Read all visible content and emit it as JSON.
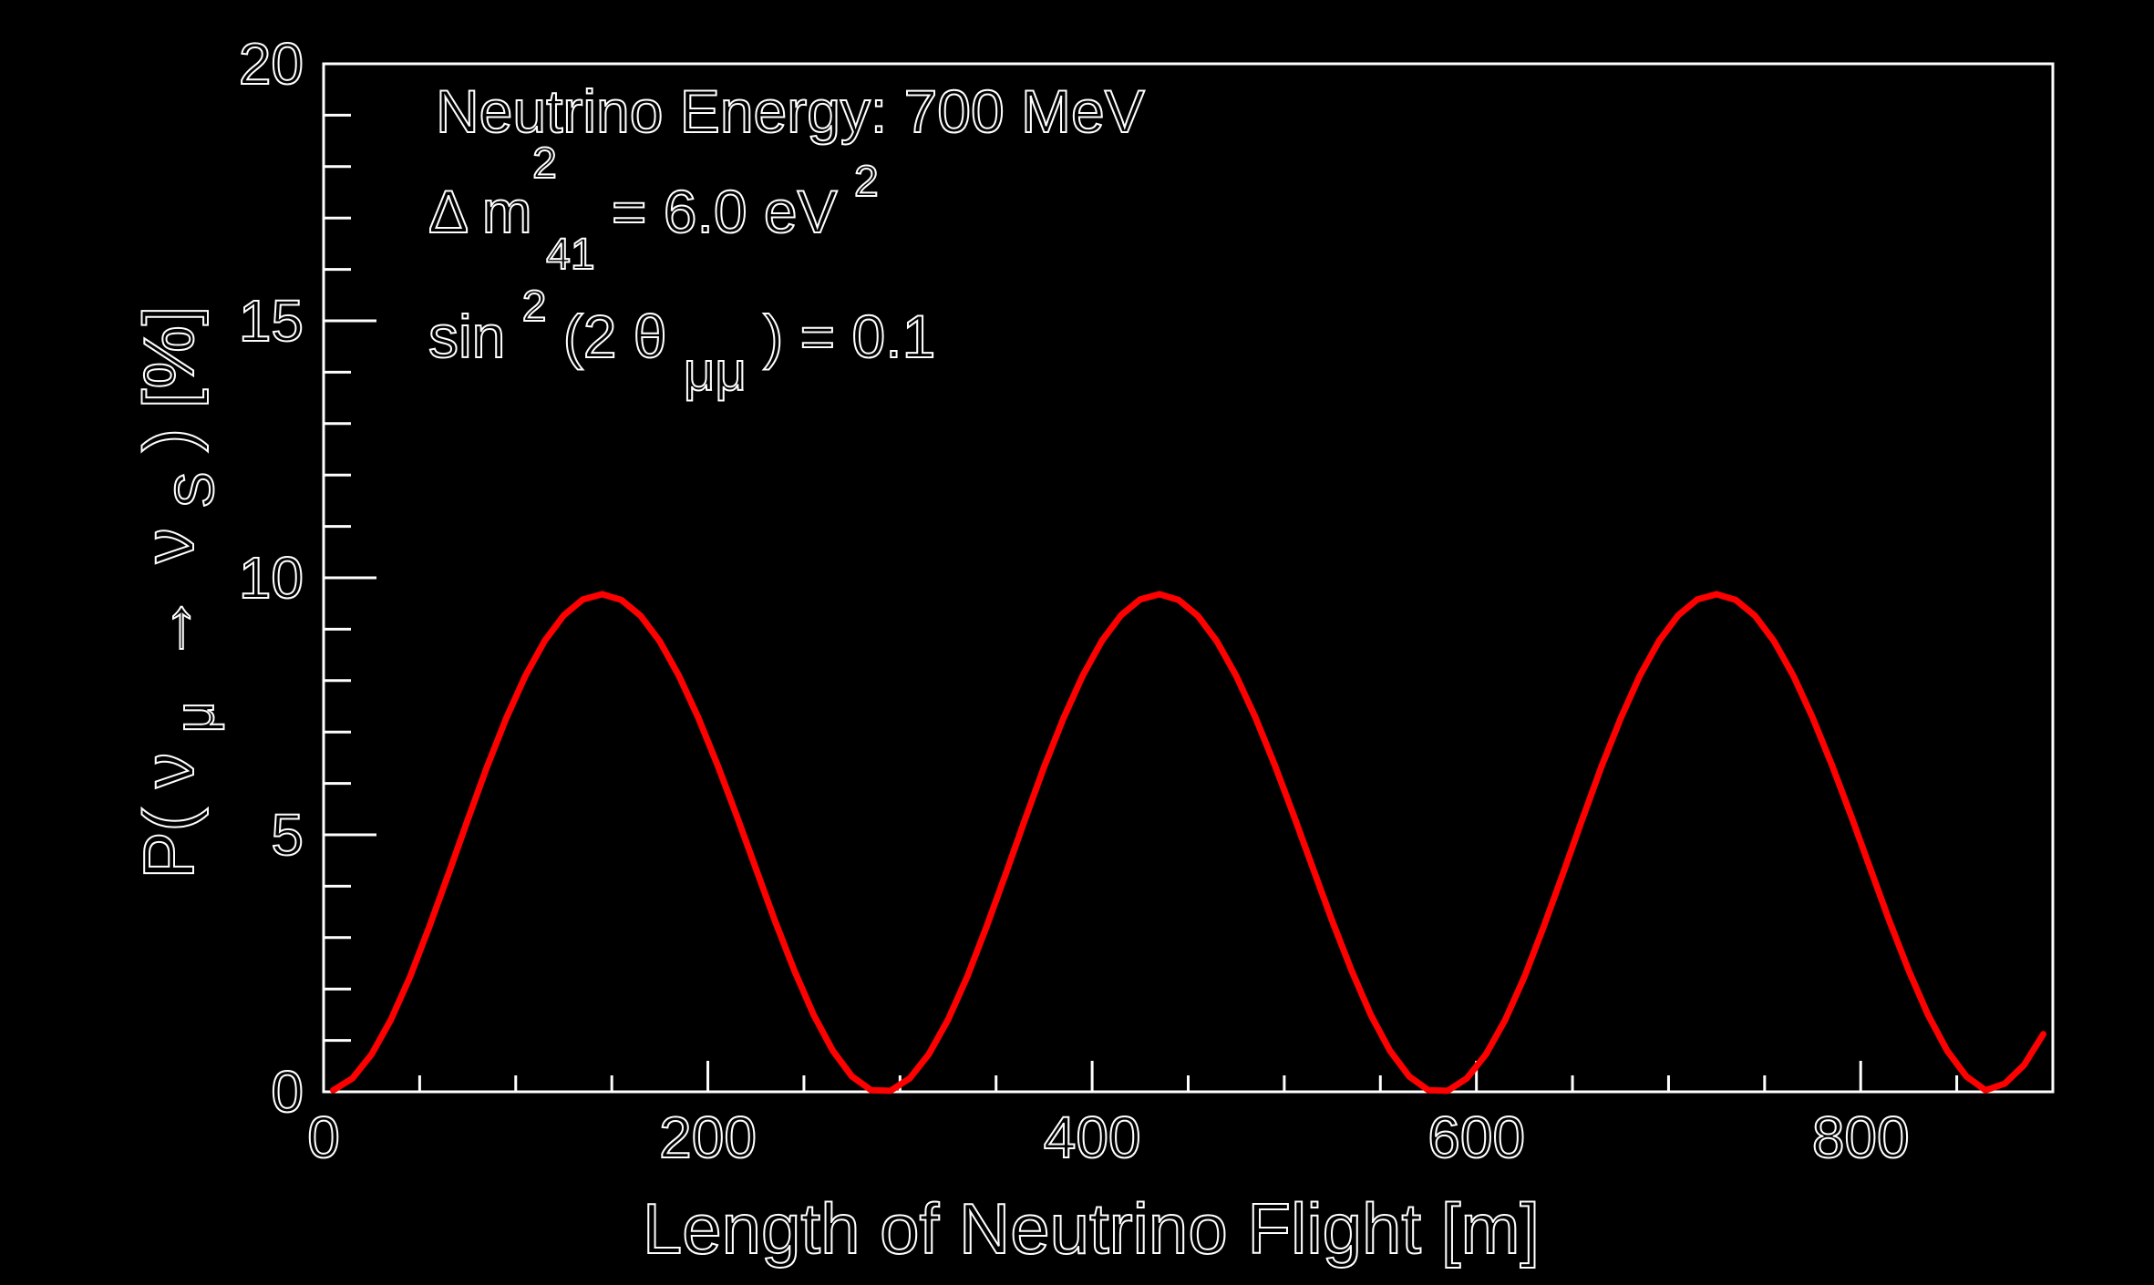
{
  "chart_data": {
    "type": "line",
    "xlabel": "Length of Neutrino Flight [m]",
    "ylabel": {
      "prefix": "P(",
      "nu": "ν",
      "mu_sub": "μ",
      "arrow": "→",
      "nu2": "ν",
      "s_sub": "S",
      "suffix": ") [%]"
    },
    "xlim": [
      0,
      900
    ],
    "ylim": [
      0,
      20
    ],
    "x_ticks": [
      "0",
      "200",
      "400",
      "600",
      "800"
    ],
    "x_tick_values": [
      0,
      200,
      400,
      600,
      800
    ],
    "y_ticks": [
      "0",
      "5",
      "10",
      "15",
      "20"
    ],
    "y_tick_values": [
      0,
      5,
      10,
      15,
      20
    ],
    "annotations": {
      "energy": "Neutrino Energy:  700 MeV",
      "dm_prefix": "Δ m",
      "dm_sup": "2",
      "dm_sub": "41",
      "dm_suffix": " = 6.0 eV",
      "dm_suffix_sup": "2",
      "sin_prefix": "sin",
      "sin_sup": "2",
      "sin_mid": "(2 θ",
      "sin_sub": "μμ",
      "sin_suffix": " ) = 0.1"
    },
    "grid": false,
    "series": [
      {
        "color": "#ff0000",
        "x": [
          5,
          15,
          25,
          35,
          45,
          55,
          65,
          75,
          85,
          95,
          105,
          115,
          125,
          135,
          145,
          155,
          165,
          175,
          185,
          195,
          205,
          215,
          225,
          235,
          245,
          255,
          265,
          275,
          285,
          295,
          305,
          315,
          325,
          335,
          345,
          355,
          365,
          375,
          385,
          395,
          405,
          415,
          425,
          435,
          445,
          455,
          465,
          475,
          485,
          495,
          505,
          515,
          525,
          535,
          545,
          555,
          565,
          575,
          585,
          595,
          605,
          615,
          625,
          635,
          645,
          655,
          665,
          675,
          685,
          695,
          705,
          715,
          725,
          735,
          745,
          755,
          765,
          775,
          785,
          795,
          805,
          815,
          825,
          835,
          845,
          855,
          865,
          875,
          885,
          895
        ],
        "y": [
          0.03,
          0.26,
          0.73,
          1.4,
          2.24,
          3.21,
          4.24,
          5.29,
          6.32,
          7.26,
          8.09,
          8.77,
          9.27,
          9.58,
          9.68,
          9.57,
          9.26,
          8.76,
          8.09,
          7.28,
          6.36,
          5.37,
          4.34,
          3.32,
          2.36,
          1.5,
          0.8,
          0.3,
          0.03,
          0.02,
          0.26,
          0.73,
          1.4,
          2.24,
          3.21,
          4.24,
          5.29,
          6.32,
          7.26,
          8.09,
          8.77,
          9.27,
          9.58,
          9.68,
          9.57,
          9.26,
          8.76,
          8.09,
          7.28,
          6.36,
          5.37,
          4.34,
          3.32,
          2.36,
          1.5,
          0.8,
          0.3,
          0.03,
          0.02,
          0.26,
          0.73,
          1.4,
          2.24,
          3.21,
          4.24,
          5.29,
          6.32,
          7.26,
          8.09,
          8.77,
          9.27,
          9.58,
          9.68,
          9.57,
          9.26,
          8.76,
          8.09,
          7.28,
          6.36,
          5.37,
          4.34,
          3.32,
          2.36,
          1.5,
          0.8,
          0.3,
          0.03,
          0.16,
          0.52,
          1.12
        ]
      }
    ]
  }
}
